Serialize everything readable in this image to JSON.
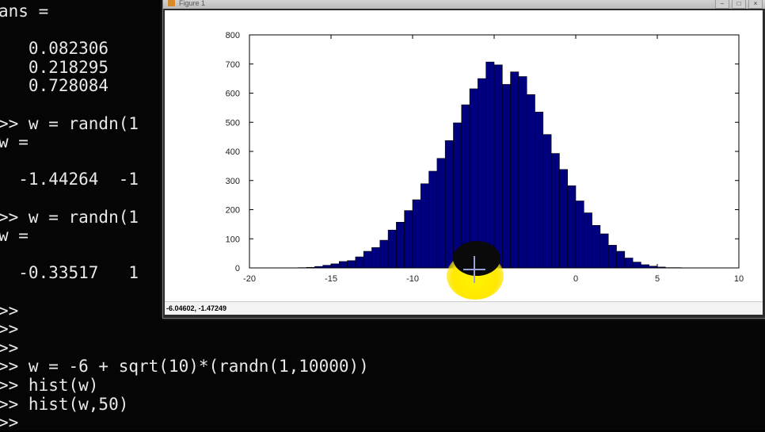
{
  "terminal": {
    "lines": [
      "ans =",
      "",
      "   0.082306",
      "   0.218295",
      "   0.728084",
      "",
      ">> w = randn(1",
      "w =",
      "",
      "  -1.44264  -1",
      "",
      ">> w = randn(1",
      "w =",
      "",
      "  -0.33517   1",
      "",
      ">>",
      ">>",
      ">>",
      ">> w = -6 + sqrt(10)*(randn(1,10000))",
      ">> hist(w)",
      ">> hist(w,50)",
      ">>"
    ]
  },
  "figure_window": {
    "title": "Figure 1",
    "status_text": "-6.04602, -1.47249"
  },
  "colors": {
    "bar_fill": "#00007f",
    "bar_edge": "#000000",
    "terminal_bg": "#050505",
    "terminal_text": "#e8e8e8",
    "cursor_highlight": "#ffe800"
  },
  "chart_data": {
    "type": "bar",
    "x_ticks": [
      -20,
      -15,
      -10,
      -5,
      0,
      5,
      10
    ],
    "y_ticks": [
      0,
      100,
      200,
      300,
      400,
      500,
      600,
      700,
      800
    ],
    "xlim": [
      -20,
      10
    ],
    "ylim": [
      0,
      800
    ],
    "bin_start": -17.0,
    "bin_width": 0.5,
    "values": [
      1,
      2,
      5,
      9,
      14,
      22,
      25,
      38,
      57,
      70,
      95,
      130,
      157,
      197,
      234,
      289,
      332,
      376,
      437,
      498,
      560,
      615,
      650,
      707,
      697,
      630,
      673,
      657,
      595,
      535,
      458,
      393,
      338,
      282,
      230,
      189,
      146,
      117,
      78,
      57,
      34,
      20,
      11,
      6,
      3,
      1,
      1,
      0,
      0,
      0
    ],
    "grid": false,
    "legend": "none"
  }
}
